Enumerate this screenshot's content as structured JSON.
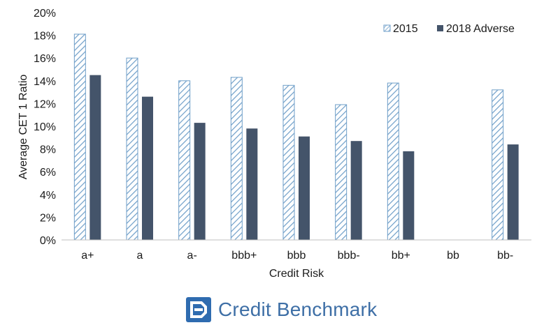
{
  "colors": {
    "series_2015_stroke": "#6e9ec8",
    "series_2018": "#44546a",
    "brand_blue": "#3e6fa6",
    "brand_mark": "#2f6cb0"
  },
  "chart_data": {
    "type": "bar",
    "title": "",
    "xlabel": "Credit Risk",
    "ylabel": "Average CET 1 Ratio",
    "categories": [
      "a+",
      "a",
      "a-",
      "bbb+",
      "bbb",
      "bbb-",
      "bb+",
      "bb",
      "bb-"
    ],
    "series": [
      {
        "name": "2015",
        "pattern": "diagonal-hatch",
        "values": [
          18.1,
          16.0,
          14.0,
          14.3,
          13.6,
          11.9,
          13.8,
          null,
          13.2
        ]
      },
      {
        "name": "2018 Adverse",
        "pattern": "solid",
        "values": [
          14.5,
          12.6,
          10.3,
          9.8,
          9.1,
          8.7,
          7.8,
          null,
          8.4
        ]
      }
    ],
    "ylim": [
      0,
      20
    ],
    "yticks": [
      "0%",
      "2%",
      "4%",
      "6%",
      "8%",
      "10%",
      "12%",
      "14%",
      "16%",
      "18%",
      "20%"
    ],
    "grid": false,
    "legend_position": "top-right"
  },
  "brand": {
    "name": "Credit Benchmark",
    "logo_icon": "credit-benchmark-logo-icon"
  }
}
